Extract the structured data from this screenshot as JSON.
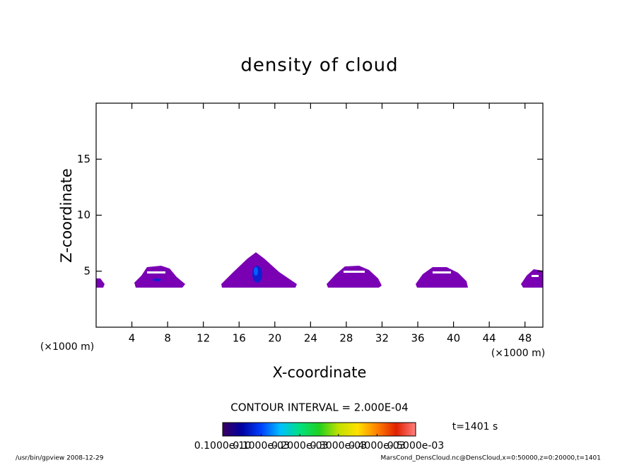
{
  "chart_data": {
    "type": "contour",
    "title": "density of cloud",
    "x_label": "X-coordinate",
    "y_label": "Z-coordinate",
    "x_unit": "(×1000 m)",
    "x_unit_right": "(×1000 m)",
    "xlim": [
      0,
      50
    ],
    "ylim": [
      0,
      20
    ],
    "xticks": [
      4,
      8,
      12,
      16,
      20,
      24,
      28,
      32,
      36,
      40,
      44,
      48
    ],
    "yticks": [
      5,
      10,
      15
    ],
    "contour_interval": "CONTOUR INTERVAL = 2.000E-04",
    "time_label": "t=1401 s",
    "colorbar": {
      "clim": [
        0,
        0.0005
      ],
      "colors": [
        "#3a0060",
        "#0000a0",
        "#0040ff",
        "#00c0ff",
        "#00e080",
        "#20d020",
        "#c0e000",
        "#ffe000",
        "#ff8000",
        "#e02000",
        "#ff8080"
      ],
      "ticks": [
        {
          "value": 1e-11,
          "label": "0.1000e-10"
        },
        {
          "value": 0.0001,
          "label": "0.1000e-03"
        },
        {
          "value": 0.0002,
          "label": "0.2000e-03"
        },
        {
          "value": 0.0003,
          "label": "0.3000e-03"
        },
        {
          "value": 0.0004,
          "label": "0.4000e-03"
        },
        {
          "value": 0.0005,
          "label": "0.5000e-03"
        }
      ]
    },
    "footer_left": "/usr/bin/gpview   2008-12-29",
    "footer_right": "MarsCond_DensCloud.nc@DensCloud,x=0:50000,z=0:20000,t=1401"
  }
}
